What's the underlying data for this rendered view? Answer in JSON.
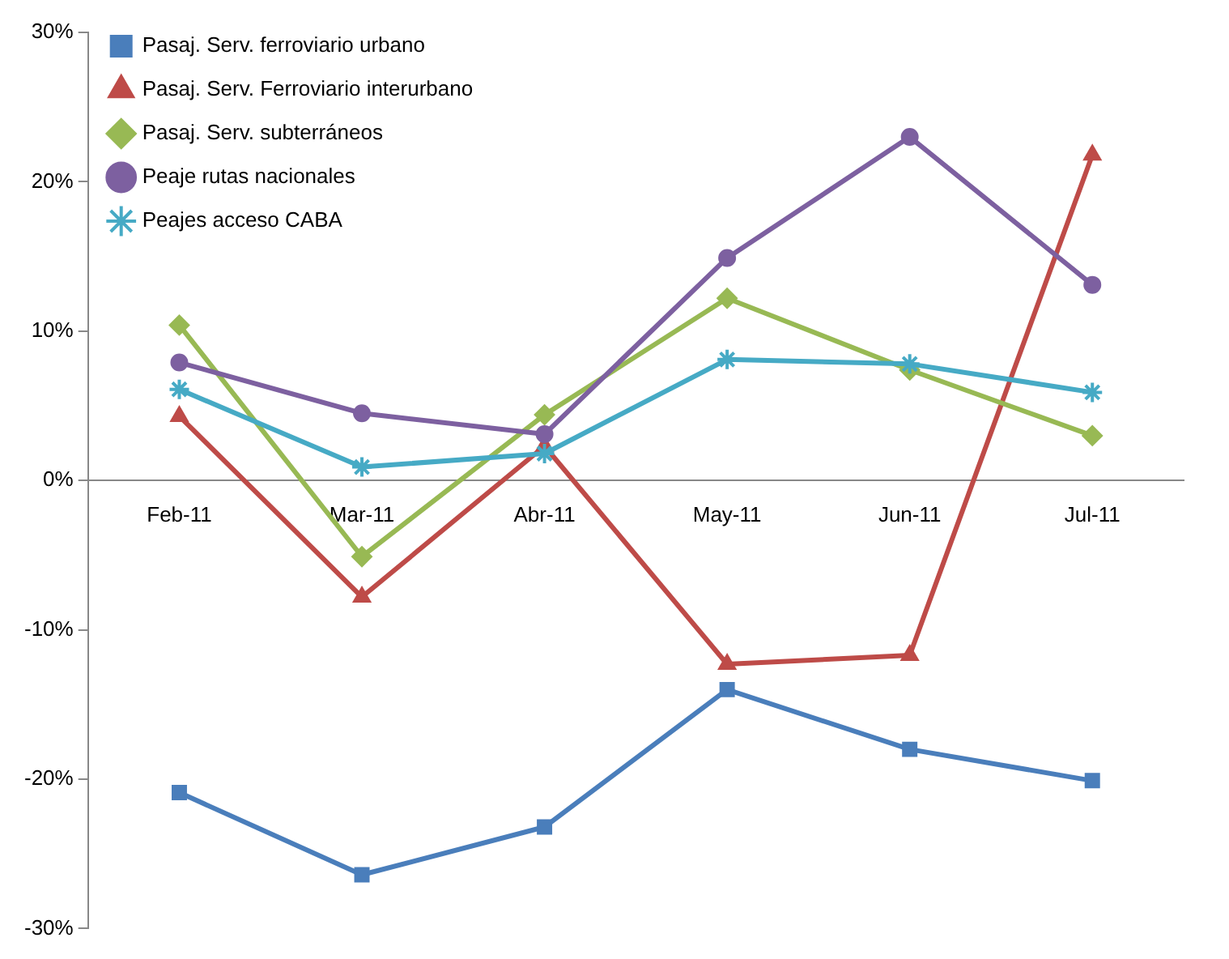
{
  "chart_data": {
    "type": "line",
    "categories": [
      "Feb-11",
      "Mar-11",
      "Abr-11",
      "May-11",
      "Jun-11",
      "Jul-11"
    ],
    "series": [
      {
        "name": "Pasaj. Serv. ferroviario urbano",
        "color": "#4a7ebb",
        "marker": "square",
        "values": [
          -20.9,
          -26.4,
          -23.2,
          -14.0,
          -18.0,
          -20.1
        ]
      },
      {
        "name": "Pasaj. Serv. Ferroviario interurbano",
        "color": "#be4b48",
        "marker": "triangle",
        "values": [
          4.3,
          -7.8,
          2.3,
          -12.3,
          -11.7,
          21.8
        ]
      },
      {
        "name": "Pasaj. Serv. subterráneos",
        "color": "#98b954",
        "marker": "diamond",
        "values": [
          10.4,
          -5.1,
          4.4,
          12.2,
          7.4,
          3.0
        ]
      },
      {
        "name": "Peaje rutas nacionales",
        "color": "#7d60a0",
        "marker": "circle",
        "values": [
          7.9,
          4.5,
          3.1,
          14.9,
          23.0,
          13.1
        ]
      },
      {
        "name": "Peajes acceso CABA",
        "color": "#46aac5",
        "marker": "cross",
        "values": [
          6.1,
          0.9,
          1.8,
          8.1,
          7.8,
          5.9
        ]
      }
    ],
    "ylim": [
      -30,
      30
    ],
    "yticks": [
      {
        "value": -30,
        "label": "-30%"
      },
      {
        "value": -20,
        "label": "-20%"
      },
      {
        "value": -10,
        "label": "-10%"
      },
      {
        "value": 0,
        "label": "0%"
      },
      {
        "value": 10,
        "label": "10%"
      },
      {
        "value": 20,
        "label": "20%"
      },
      {
        "value": 30,
        "label": "30%"
      }
    ],
    "grid": false,
    "legend": "top left"
  }
}
